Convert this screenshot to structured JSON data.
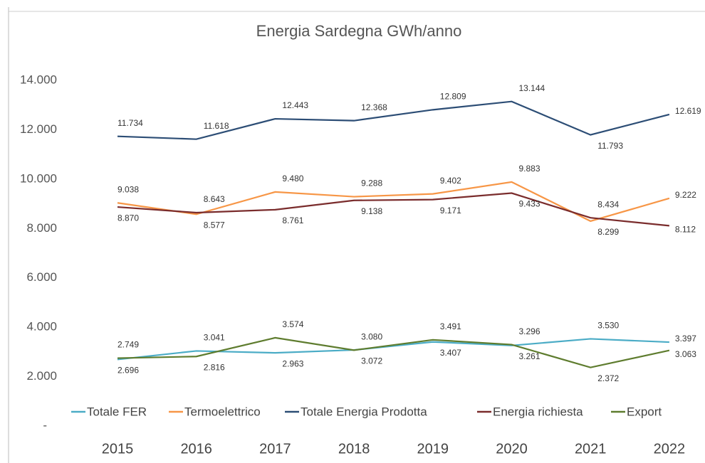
{
  "chart_data": {
    "type": "line",
    "title": "Energia Sardegna GWh/anno",
    "categories": [
      "2015",
      "2016",
      "2017",
      "2018",
      "2019",
      "2020",
      "2021",
      "2022"
    ],
    "ylim": [
      0,
      14000
    ],
    "yticks": [
      {
        "value": 0,
        "label": "-"
      },
      {
        "value": 2000,
        "label": "2.000"
      },
      {
        "value": 4000,
        "label": "4.000"
      },
      {
        "value": 6000,
        "label": "6.000"
      },
      {
        "value": 8000,
        "label": "8.000"
      },
      {
        "value": 10000,
        "label": "10.000"
      },
      {
        "value": 12000,
        "label": "12.000"
      },
      {
        "value": 14000,
        "label": "14.000"
      }
    ],
    "legend": "bottom",
    "series": [
      {
        "name": "Totale FER",
        "color": "#4bacc6",
        "values": [
          2696,
          3041,
          2963,
          3080,
          3407,
          3261,
          3530,
          3397
        ],
        "value_labels": [
          "2.696",
          "3.041",
          "2.963",
          "3.080",
          "3.407",
          "3.261",
          "3.530",
          "3.397"
        ]
      },
      {
        "name": "Termoelettrico",
        "color": "#f79646",
        "values": [
          9038,
          8577,
          9480,
          9288,
          9402,
          9883,
          8299,
          9222
        ],
        "value_labels": [
          "9.038",
          "8.577",
          "9.480",
          "9.288",
          "9.402",
          "9.883",
          "8.299",
          "9.222"
        ]
      },
      {
        "name": "Totale Energia Prodotta",
        "color": "#2c4d75",
        "values": [
          11734,
          11618,
          12443,
          12368,
          12809,
          13144,
          11793,
          12619
        ],
        "value_labels": [
          "11.734",
          "11.618",
          "12.443",
          "12.368",
          "12.809",
          "13.144",
          "11.793",
          "12.619"
        ]
      },
      {
        "name": "Energia richiesta",
        "color": "#7a2c2c",
        "values": [
          8870,
          8643,
          8761,
          9138,
          9171,
          9433,
          8434,
          8112
        ],
        "value_labels": [
          "8.870",
          "8.643",
          "8.761",
          "9.138",
          "9.171",
          "9.433",
          "8.434",
          "8.112"
        ]
      },
      {
        "name": "Export",
        "color": "#5e7c2e",
        "values": [
          2749,
          2816,
          3574,
          3072,
          3491,
          3296,
          2372,
          3063
        ],
        "value_labels": [
          "2.749",
          "2.816",
          "3.574",
          "3.072",
          "3.491",
          "3.296",
          "2.372",
          "3.063"
        ]
      }
    ]
  }
}
